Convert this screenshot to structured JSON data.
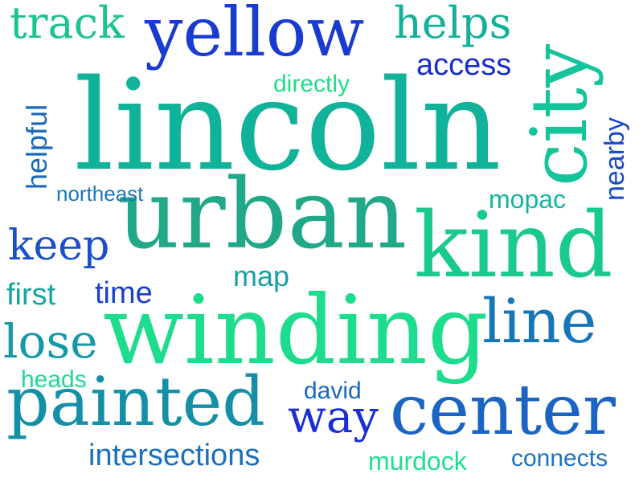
{
  "words": {
    "lincoln": {
      "text": "lincoln",
      "color": "#10b39a"
    },
    "urban": {
      "text": "urban",
      "color": "#20a888"
    },
    "winding": {
      "text": "winding",
      "color": "#1edc8e"
    },
    "kind": {
      "text": "kind",
      "color": "#1ac98c"
    },
    "yellow": {
      "text": "yellow",
      "color": "#1a3bd0"
    },
    "painted": {
      "text": "painted",
      "color": "#1390a8"
    },
    "center": {
      "text": "center",
      "color": "#1a64c4"
    },
    "line": {
      "text": "line",
      "color": "#1576b8"
    },
    "city": {
      "text": "city",
      "color": "#14c49a"
    },
    "track": {
      "text": "track",
      "color": "#1cc392"
    },
    "helps": {
      "text": "helps",
      "color": "#14b09a"
    },
    "lose": {
      "text": "lose",
      "color": "#1598a8"
    },
    "keep": {
      "text": "keep",
      "color": "#1a50c8"
    },
    "way": {
      "text": "way",
      "color": "#1a2ed4"
    },
    "access": {
      "text": "access",
      "color": "#1a2cd0"
    },
    "directly": {
      "text": "directly",
      "color": "#22dc8a"
    },
    "helpful": {
      "text": "helpful",
      "color": "#1a6ab8"
    },
    "nearby": {
      "text": "nearby",
      "color": "#1a48c8"
    },
    "northeast": {
      "text": "northeast",
      "color": "#1a78b8"
    },
    "mopac": {
      "text": "mopac",
      "color": "#18b4a0"
    },
    "first": {
      "text": "first",
      "color": "#16a49e"
    },
    "time": {
      "text": "time",
      "color": "#1a40cc"
    },
    "map": {
      "text": "map",
      "color": "#18a0a4"
    },
    "heads": {
      "text": "heads",
      "color": "#22d892"
    },
    "david": {
      "text": "david",
      "color": "#1a68c0"
    },
    "intersections": {
      "text": "intersections",
      "color": "#1a70bc"
    },
    "murdock": {
      "text": "murdock",
      "color": "#20e090"
    },
    "connects": {
      "text": "connects",
      "color": "#1a72c0"
    }
  }
}
